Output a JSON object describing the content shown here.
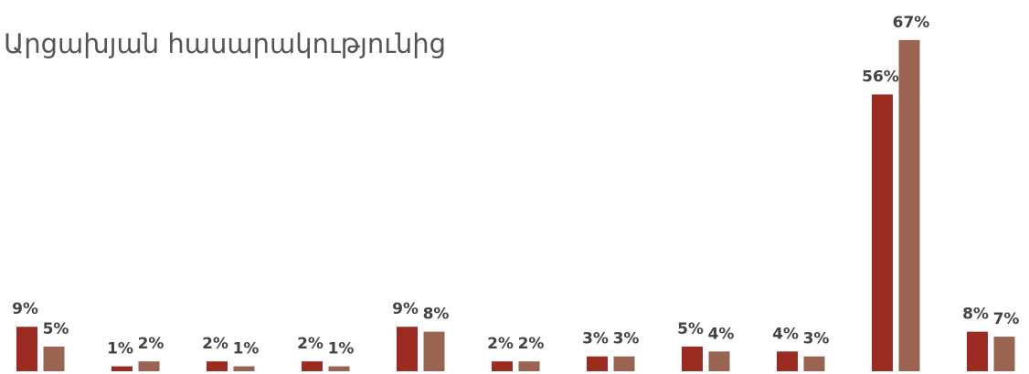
{
  "chart_data": {
    "type": "bar",
    "title": "Արցախյան հասարակությունից",
    "categories": [
      null,
      null,
      null,
      null,
      null,
      null,
      null,
      null,
      null,
      null,
      null
    ],
    "series": [
      {
        "color": "#9b2b20",
        "values": [
          9,
          1,
          2,
          2,
          9,
          2,
          3,
          5,
          4,
          56,
          8
        ],
        "value_labels": [
          "9%",
          "1%",
          "2%",
          "2%",
          "9%",
          "2%",
          "3%",
          "5%",
          "4%",
          "56%",
          "8%"
        ]
      },
      {
        "color": "#9a6453",
        "values": [
          5,
          2,
          1,
          1,
          8,
          2,
          3,
          4,
          3,
          67,
          7
        ],
        "value_labels": [
          "5%",
          "2%",
          "1%",
          "1%",
          "8%",
          "2%",
          "3%",
          "4%",
          "3%",
          "67%",
          "7%"
        ]
      }
    ]
  }
}
